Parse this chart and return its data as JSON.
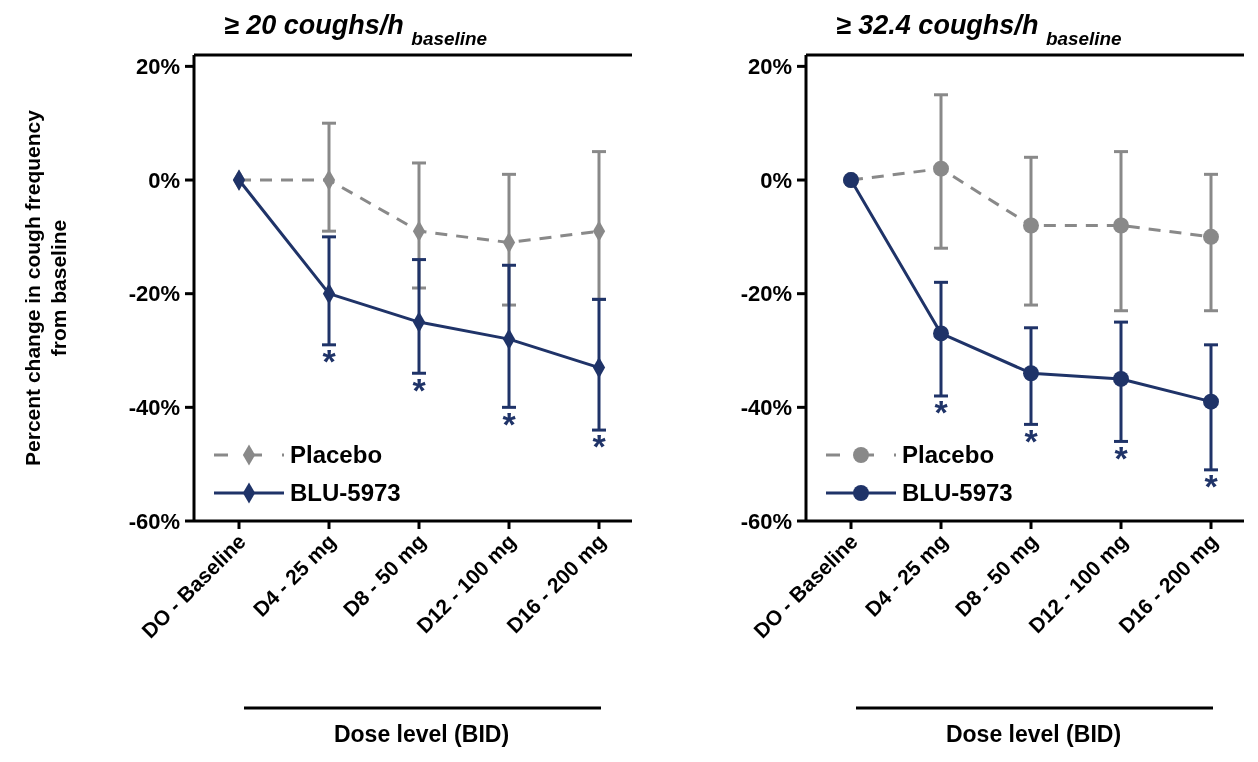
{
  "chart_data": [
    {
      "type": "line",
      "title": "≥ 20 coughs/h $_{baseline}$",
      "xlabel": "Dose level (BID)",
      "ylabel": "Percent change in cough frequency from baseline",
      "categories": [
        "DO - Baseline",
        "D4 - 25 mg",
        "D8 - 50 mg",
        "D12 - 100 mg",
        "D16 - 200 mg"
      ],
      "series": [
        {
          "name": "Placebo",
          "color": "#898989",
          "line_style": "dashed",
          "values": [
            0,
            0,
            -9,
            -11,
            -9
          ],
          "errors": [
            null,
            [
              -9,
              10
            ],
            [
              -19,
              3
            ],
            [
              -22,
              1
            ],
            [
              -21,
              5
            ]
          ]
        },
        {
          "name": "BLU-5973",
          "color": "#1f3368",
          "line_style": "solid",
          "values": [
            0,
            -20,
            -25,
            -28,
            -33
          ],
          "errors": [
            null,
            [
              -29,
              -10
            ],
            [
              -34,
              -14
            ],
            [
              -40,
              -15
            ],
            [
              -44,
              -21
            ]
          ]
        }
      ],
      "marker": "diamond",
      "ylim": [
        -60,
        22
      ],
      "yticks": [
        {
          "value": -60,
          "label": "-60%"
        },
        {
          "value": -40,
          "label": "-40%"
        },
        {
          "value": -20,
          "label": "-20%"
        },
        {
          "value": 0,
          "label": "0%"
        },
        {
          "value": 20,
          "label": "20%"
        }
      ],
      "legend": "bottom left",
      "grid": false,
      "annotations": [
        "*",
        "*",
        "*",
        "*"
      ]
    },
    {
      "type": "line",
      "title": "≥ 32.4 coughs/h $_{baseline}$",
      "xlabel": "Dose level (BID)",
      "categories": [
        "DO - Baseline",
        "D4 - 25 mg",
        "D8 - 50 mg",
        "D12 - 100 mg",
        "D16 - 200 mg"
      ],
      "series": [
        {
          "name": "Placebo",
          "color": "#898989",
          "line_style": "dashed",
          "values": [
            0,
            2,
            -8,
            -8,
            -10
          ],
          "errors": [
            null,
            [
              -12,
              15
            ],
            [
              -22,
              4
            ],
            [
              -23,
              5
            ],
            [
              -23,
              1
            ]
          ]
        },
        {
          "name": "BLU-5973",
          "color": "#1f3368",
          "line_style": "solid",
          "values": [
            0,
            -27,
            -34,
            -35,
            -39
          ],
          "errors": [
            null,
            [
              -38,
              -18
            ],
            [
              -43,
              -26
            ],
            [
              -46,
              -25
            ],
            [
              -51,
              -29
            ]
          ]
        }
      ],
      "marker": "circle",
      "ylim": [
        -60,
        22
      ],
      "yticks": [
        {
          "value": -60,
          "label": "-60%"
        },
        {
          "value": -40,
          "label": "-40%"
        },
        {
          "value": -20,
          "label": "-20%"
        },
        {
          "value": 0,
          "label": "0%"
        },
        {
          "value": 20,
          "label": "20%"
        }
      ],
      "legend": "bottom left",
      "grid": false,
      "annotations": [
        "*",
        "*",
        "*",
        "*"
      ]
    }
  ]
}
